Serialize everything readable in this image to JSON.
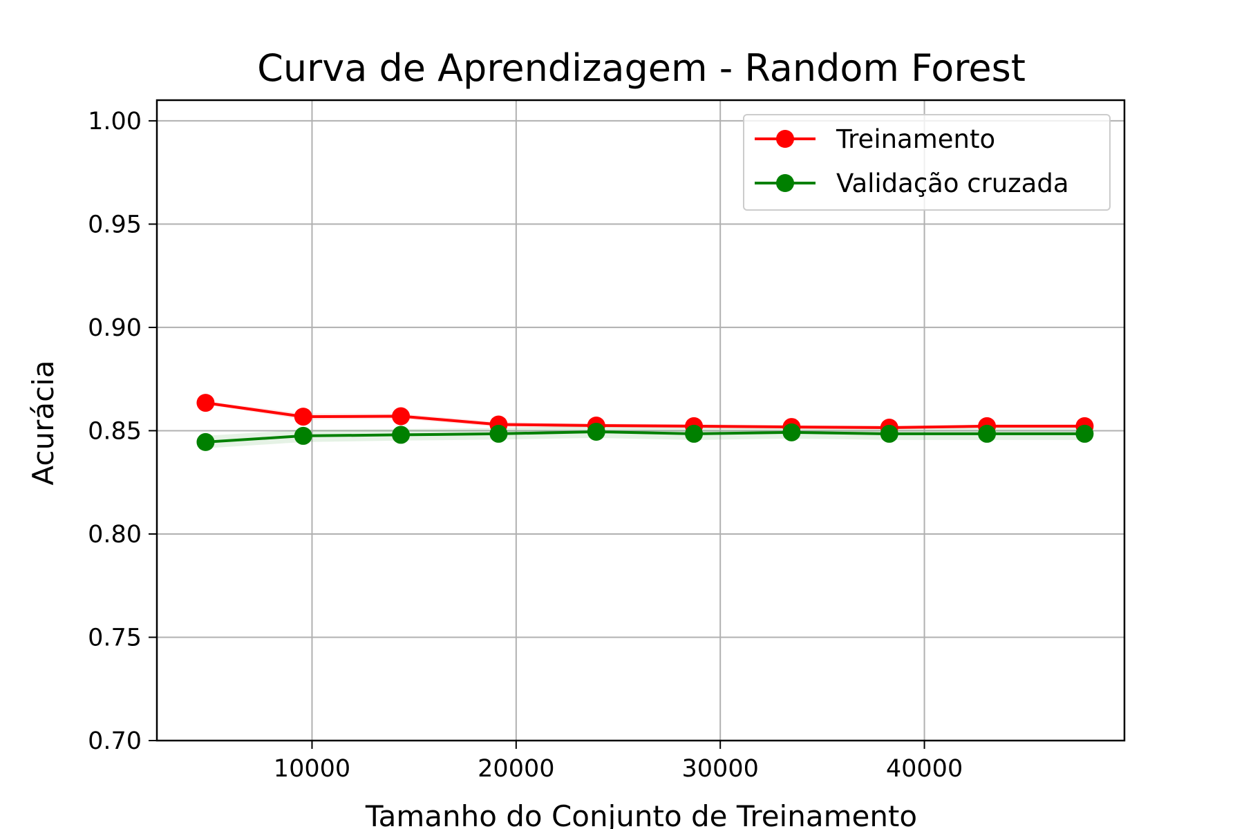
{
  "chart_data": {
    "type": "line",
    "title": "Curva de Aprendizagem - Random Forest",
    "xlabel": "Tamanho do Conjunto de Treinamento",
    "ylabel": "Acurácia",
    "xlim": [
      2400,
      49800
    ],
    "ylim": [
      0.7,
      1.01
    ],
    "xticks": [
      10000,
      20000,
      30000,
      40000
    ],
    "xtick_labels": [
      "10000",
      "20000",
      "30000",
      "40000"
    ],
    "yticks": [
      0.7,
      0.75,
      0.8,
      0.85,
      0.9,
      0.95,
      1.0
    ],
    "ytick_labels": [
      "0.70",
      "0.75",
      "0.80",
      "0.85",
      "0.90",
      "0.95",
      "1.00"
    ],
    "grid": true,
    "legend_position": "upper right",
    "x": [
      4785,
      9570,
      14355,
      19140,
      23925,
      28710,
      33495,
      38280,
      43065,
      47850
    ],
    "series": [
      {
        "name": "Treinamento",
        "color": "#ff0000",
        "marker": "circle",
        "values": [
          0.8635,
          0.8568,
          0.857,
          0.853,
          0.8525,
          0.8522,
          0.8518,
          0.8515,
          0.8522,
          0.8522
        ],
        "band": [
          0.0008,
          0.0015,
          0.0012,
          0.0012,
          0.001,
          0.001,
          0.0009,
          0.0009,
          0.0008,
          0.0008
        ]
      },
      {
        "name": "Validação cruzada",
        "color": "#008000",
        "marker": "circle",
        "values": [
          0.8445,
          0.8475,
          0.848,
          0.8485,
          0.8495,
          0.8485,
          0.8492,
          0.8485,
          0.8485,
          0.8485
        ],
        "band": [
          0.003,
          0.003,
          0.0028,
          0.0028,
          0.003,
          0.003,
          0.003,
          0.003,
          0.003,
          0.003
        ]
      }
    ]
  }
}
